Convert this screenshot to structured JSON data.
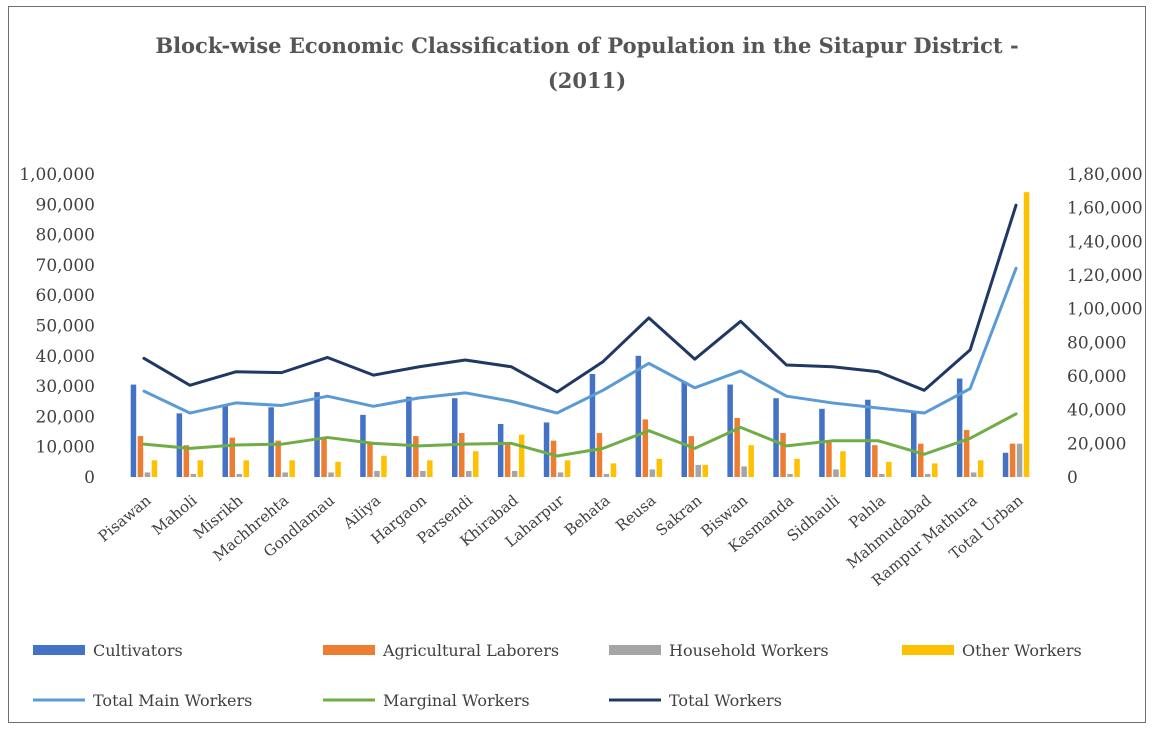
{
  "chart_data": {
    "type": "bar",
    "title": "Block-wise Economic Classification of Population in the Sitapur District -",
    "subtitle": "(2011)",
    "categories": [
      "Pisawan",
      "Maholi",
      "Misrikh",
      "Machhrehta",
      "Gondlamau",
      "Ailiya",
      "Hargaon",
      "Parsendi",
      "Khirabad",
      "Laharpur",
      "Behata",
      "Reusa",
      "Sakran",
      "Biswan",
      "Kasmanda",
      "Sidhauli",
      "Pahla",
      "Mahmudabad",
      "Rampur Mathura",
      "Total Urban"
    ],
    "left_axis": {
      "ylim": [
        0,
        100000
      ],
      "ticks": [
        0,
        10000,
        20000,
        30000,
        40000,
        50000,
        60000,
        70000,
        80000,
        90000,
        100000
      ],
      "tick_labels": [
        "0",
        "10,000",
        "20,000",
        "30,000",
        "40,000",
        "50,000",
        "60,000",
        "70,000",
        "80,000",
        "90,000",
        "1,00,000"
      ]
    },
    "right_axis": {
      "ylim": [
        0,
        180000
      ],
      "ticks": [
        0,
        20000,
        40000,
        60000,
        80000,
        100000,
        120000,
        140000,
        160000,
        180000
      ],
      "tick_labels": [
        "0",
        "20,000",
        "40,000",
        "60,000",
        "80,000",
        "1,00,000",
        "1,20,000",
        "1,40,000",
        "1,60,000",
        "1,80,000"
      ]
    },
    "bar_series": [
      {
        "name": "Cultivators",
        "color": "#4472C4",
        "values": [
          30500,
          21000,
          23500,
          23000,
          28000,
          20500,
          26500,
          26000,
          17500,
          18000,
          34000,
          40000,
          31500,
          30500,
          26000,
          22500,
          25500,
          21500,
          32500,
          8000
        ]
      },
      {
        "name": "Agricultural Laborers",
        "color": "#ED7D31",
        "values": [
          13500,
          10500,
          13000,
          12000,
          13000,
          11500,
          13500,
          14500,
          11000,
          12000,
          14500,
          19000,
          13500,
          19500,
          14500,
          11500,
          10500,
          11000,
          15500,
          11000
        ]
      },
      {
        "name": "Household Workers",
        "color": "#A5A5A5",
        "values": [
          1500,
          1000,
          1000,
          1500,
          1500,
          2000,
          2000,
          2000,
          2000,
          1500,
          1000,
          2500,
          4000,
          3500,
          1000,
          2500,
          1000,
          1000,
          1500,
          11000
        ]
      },
      {
        "name": "Other Workers",
        "color": "#FFC000",
        "values": [
          5500,
          5500,
          5500,
          5500,
          5000,
          7000,
          5500,
          8500,
          14000,
          5500,
          4500,
          6000,
          4000,
          10500,
          6000,
          8500,
          5000,
          4500,
          5500,
          94000
        ]
      }
    ],
    "line_series": [
      {
        "name": "Total Main Workers",
        "color": "#5B9BD5",
        "axis": "right",
        "values": [
          51000,
          38000,
          44000,
          42500,
          48000,
          42000,
          47000,
          50000,
          45000,
          38000,
          51500,
          67500,
          53000,
          63000,
          48000,
          44000,
          41000,
          38000,
          52500,
          124000
        ]
      },
      {
        "name": "Marginal Workers",
        "color": "#70AD47",
        "axis": "right",
        "values": [
          19500,
          17000,
          19000,
          19500,
          23500,
          20000,
          18500,
          19500,
          20000,
          12500,
          17000,
          27500,
          17000,
          29500,
          18500,
          21500,
          21500,
          13500,
          23000,
          37500
        ]
      },
      {
        "name": "Total Workers",
        "color": "#203864",
        "axis": "right",
        "values": [
          70500,
          54500,
          62500,
          62000,
          71000,
          60500,
          65500,
          69500,
          65500,
          50500,
          68500,
          94500,
          70000,
          92500,
          66500,
          65500,
          62500,
          51500,
          75500,
          161500
        ]
      }
    ],
    "legend_placement": "bottom",
    "grid": false
  }
}
